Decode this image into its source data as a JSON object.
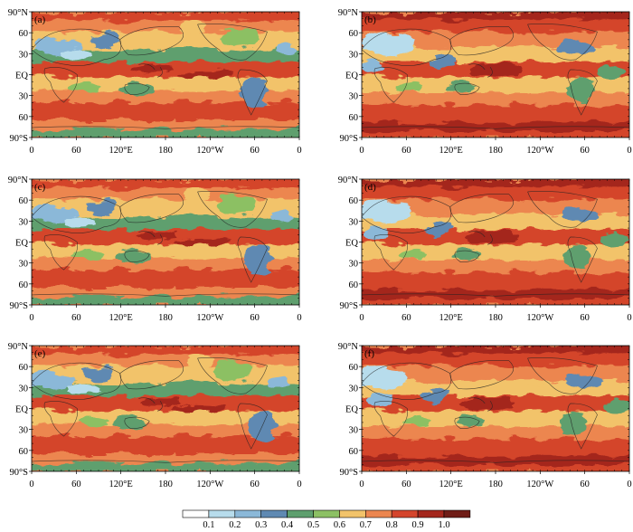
{
  "figure": {
    "panels": [
      {
        "label": "(a)"
      },
      {
        "label": "(b)"
      },
      {
        "label": "(c)"
      },
      {
        "label": "(d)"
      },
      {
        "label": "(e)"
      },
      {
        "label": "(f)"
      }
    ],
    "lat_tick_labels": [
      "90°N",
      "60",
      "30",
      "EQ",
      "30",
      "60",
      "90°S"
    ],
    "lon_tick_labels": [
      "0",
      "60",
      "120°E",
      "180",
      "120°W",
      "60",
      "0"
    ],
    "colorbar": {
      "tick_labels": [
        "0.1",
        "0.2",
        "0.3",
        "0.4",
        "0.5",
        "0.6",
        "0.7",
        "0.8",
        "0.9",
        "1.0"
      ],
      "colors": [
        "#ffffff",
        "#b7dcec",
        "#8bb8d8",
        "#5f89b2",
        "#5e9f6e",
        "#8cc064",
        "#f2c36a",
        "#ec8650",
        "#d4452c",
        "#a4271d",
        "#6f1d17"
      ]
    }
  }
}
